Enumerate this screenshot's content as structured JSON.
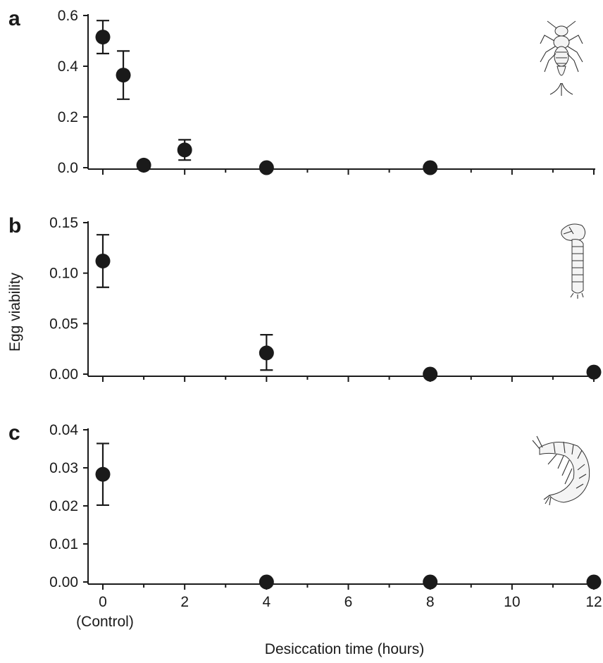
{
  "figure": {
    "ylabel": "Egg viability",
    "xlabel": "Desiccation time (hours)",
    "x_ticks": [
      "0",
      "2",
      "4",
      "6",
      "8",
      "10",
      "12"
    ],
    "x_tick_sublabel": "(Control)",
    "xlim": [
      0,
      12
    ]
  },
  "chart_data": [
    {
      "type": "scatter",
      "panel": "a",
      "icon": "mayfly-nymph-icon",
      "ylim": [
        0,
        0.6
      ],
      "y_ticks": [
        "0.0",
        "0.2",
        "0.4",
        "0.6"
      ],
      "y_tick_values": [
        0,
        0.2,
        0.4,
        0.6
      ],
      "points": [
        {
          "x": 0,
          "y": 0.515,
          "lo": 0.45,
          "hi": 0.58
        },
        {
          "x": 0.5,
          "y": 0.365,
          "lo": 0.27,
          "hi": 0.46
        },
        {
          "x": 1,
          "y": 0.01
        },
        {
          "x": 2,
          "y": 0.07,
          "lo": 0.03,
          "hi": 0.11
        },
        {
          "x": 4,
          "y": 0.0
        },
        {
          "x": 8,
          "y": 0.0
        }
      ]
    },
    {
      "type": "scatter",
      "panel": "b",
      "icon": "midge-larva-icon",
      "ylim": [
        0,
        0.15
      ],
      "y_ticks": [
        "0.00",
        "0.05",
        "0.10",
        "0.15"
      ],
      "y_tick_values": [
        0,
        0.05,
        0.1,
        0.15
      ],
      "points": [
        {
          "x": 0,
          "y": 0.112,
          "lo": 0.086,
          "hi": 0.138
        },
        {
          "x": 4,
          "y": 0.021,
          "lo": 0.004,
          "hi": 0.039
        },
        {
          "x": 8,
          "y": 0.0
        },
        {
          "x": 12,
          "y": 0.002
        }
      ]
    },
    {
      "type": "scatter",
      "panel": "c",
      "icon": "amphipod-icon",
      "ylim": [
        0,
        0.04
      ],
      "y_ticks": [
        "0.00",
        "0.01",
        "0.02",
        "0.03",
        "0.04"
      ],
      "y_tick_values": [
        0,
        0.01,
        0.02,
        0.03,
        0.04
      ],
      "points": [
        {
          "x": 0,
          "y": 0.0283,
          "lo": 0.0202,
          "hi": 0.0364
        },
        {
          "x": 4,
          "y": 0.0
        },
        {
          "x": 8,
          "y": 0.0
        },
        {
          "x": 12,
          "y": 0.0
        }
      ]
    }
  ]
}
